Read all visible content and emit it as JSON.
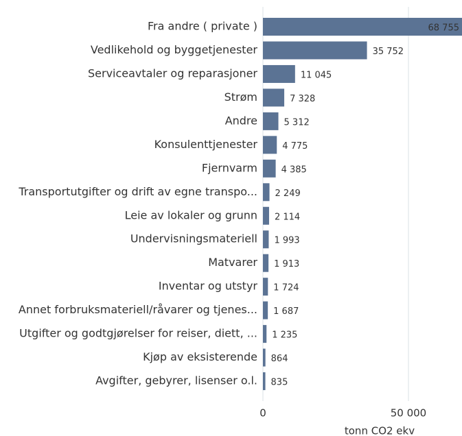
{
  "chart_data": {
    "type": "bar",
    "orientation": "horizontal",
    "categories": [
      "Fra andre ( private )",
      "Vedlikehold og byggetjenester",
      "Serviceavtaler og reparasjoner",
      "Strøm",
      "Andre",
      "Konsulenttjenester",
      "Fjernvarm",
      "Transportutgifter og drift av egne transpo...",
      "Leie av lokaler og grunn",
      "Undervisningsmateriell",
      "Matvarer",
      "Inventar og utstyr",
      "Annet forbruksmateriell/råvarer og tjenes...",
      "Utgifter og godtgjørelser for reiser, diett, ...",
      "Kjøp av eksisterende",
      "Avgifter, gebyrer, lisenser o.l."
    ],
    "values": [
      68755,
      35752,
      11045,
      7328,
      5312,
      4775,
      4385,
      2249,
      2114,
      1993,
      1913,
      1724,
      1687,
      1235,
      864,
      835
    ],
    "value_labels": [
      "68 755",
      "35 752",
      "11 045",
      "7 328",
      "5 312",
      "4 775",
      "4 385",
      "2 249",
      "2 114",
      "1 993",
      "1 913",
      "1 724",
      "1 687",
      "1 235",
      "864",
      "835"
    ],
    "color": "#5b7394",
    "xlabel": "tonn CO2 ekv",
    "xlim": [
      0,
      68400
    ],
    "xticks": [
      0,
      {
        "value": 50000,
        "label": "50 000"
      }
    ],
    "grid": true
  }
}
